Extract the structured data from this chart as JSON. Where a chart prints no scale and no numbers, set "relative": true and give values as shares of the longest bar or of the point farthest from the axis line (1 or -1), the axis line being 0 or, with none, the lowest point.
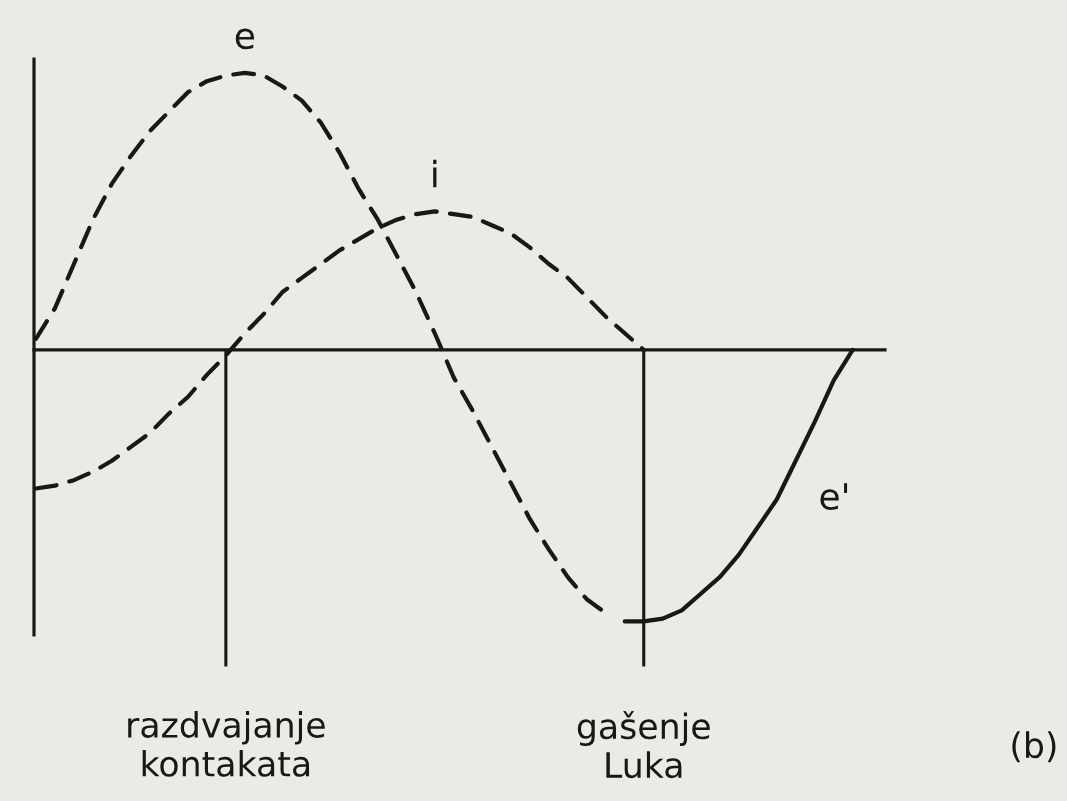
{
  "chart_data": {
    "type": "line",
    "relative": true,
    "tick_labels": "x",
    "categories": [
      null,
      null,
      null,
      null,
      null,
      null,
      null,
      null,
      null,
      null,
      "razdvajanje kontakata",
      null,
      null,
      null,
      null,
      null,
      null,
      null,
      null,
      null,
      null,
      null,
      null,
      null,
      null,
      null,
      null,
      null,
      null,
      null,
      null,
      null,
      "gašenje Luka",
      null,
      null,
      null,
      null,
      null,
      null,
      null,
      null,
      null,
      null,
      null,
      null
    ],
    "series": [
      {
        "name": "e",
        "color": "#1a1714",
        "line_style": "dashed",
        "values": [
          0.04,
          0.15,
          0.31,
          0.47,
          0.6,
          0.7,
          0.79,
          0.86,
          0.93,
          0.97,
          0.99,
          1.0,
          0.99,
          0.95,
          0.9,
          0.82,
          0.71,
          0.58,
          0.47,
          0.34,
          0.21,
          0.06,
          -0.1,
          -0.22,
          -0.35,
          -0.48,
          -0.61,
          -0.72,
          -0.82,
          -0.9,
          -0.95,
          null,
          null,
          null,
          null,
          null,
          null,
          null,
          null,
          null,
          null,
          null,
          null,
          null,
          null
        ]
      },
      {
        "name": "i",
        "color": "#1a1714",
        "line_style": "dashed",
        "values": [
          -0.5,
          -0.49,
          -0.47,
          -0.44,
          -0.4,
          -0.35,
          -0.3,
          -0.23,
          -0.17,
          -0.09,
          -0.02,
          0.06,
          0.13,
          0.21,
          0.26,
          0.31,
          0.36,
          0.4,
          0.44,
          0.47,
          0.49,
          0.5,
          0.49,
          0.48,
          0.45,
          0.42,
          0.37,
          0.31,
          0.26,
          0.19,
          0.12,
          0.06,
          0.0,
          null,
          null,
          null,
          null,
          null,
          null,
          null,
          null,
          null,
          null,
          null,
          null
        ]
      },
      {
        "name": "e'",
        "color": "#1a1714",
        "line_style": "solid",
        "values": [
          null,
          null,
          null,
          null,
          null,
          null,
          null,
          null,
          null,
          null,
          null,
          null,
          null,
          null,
          null,
          null,
          null,
          null,
          null,
          null,
          null,
          null,
          null,
          null,
          null,
          null,
          null,
          null,
          null,
          null,
          null,
          -0.98,
          -0.98,
          -0.97,
          -0.94,
          -0.88,
          -0.82,
          -0.74,
          -0.64,
          -0.54,
          -0.4,
          -0.26,
          -0.11,
          0.0,
          null
        ]
      }
    ],
    "annotations": [
      "(b)"
    ]
  }
}
